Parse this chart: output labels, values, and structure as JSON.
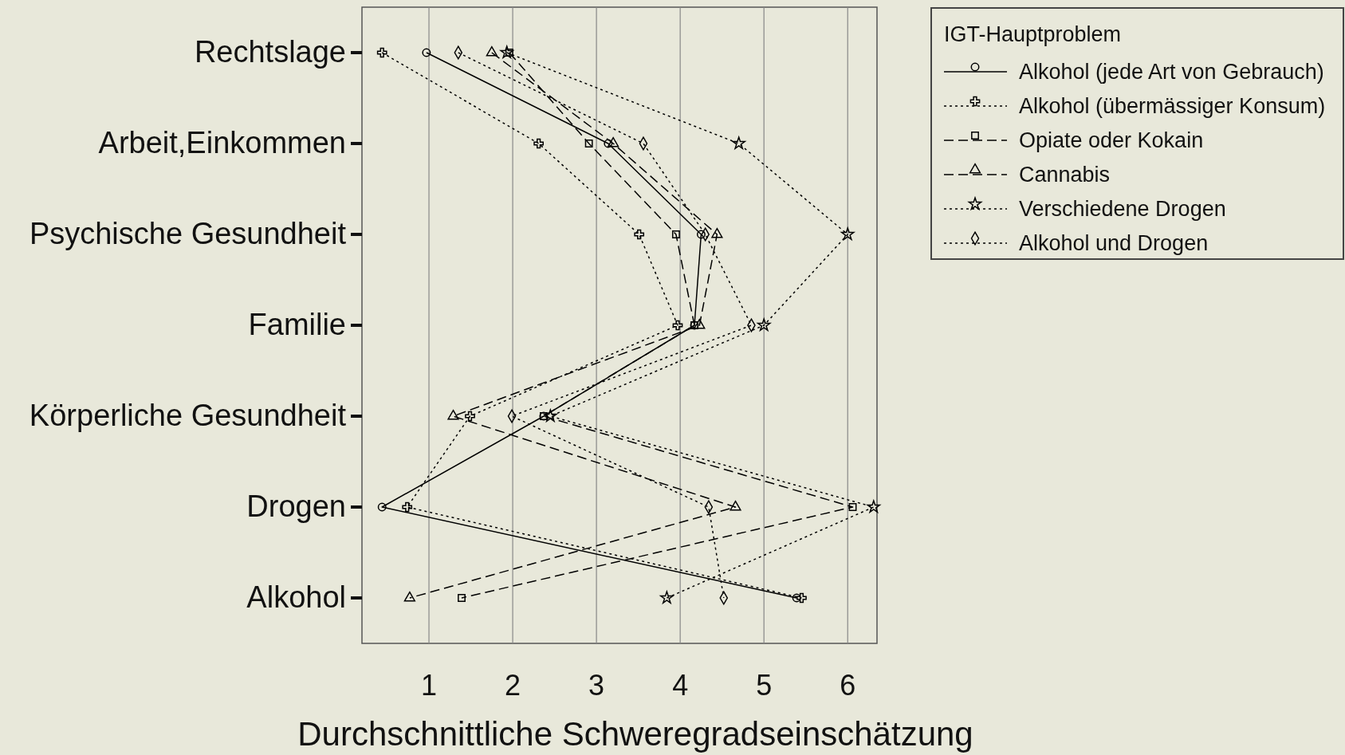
{
  "chart_data": {
    "type": "line",
    "orientation": "horizontal",
    "xlabel": "Durchschnittliche Schweregradseinschätzung",
    "legend_title": "IGT-Hauptproblem",
    "categories": [
      "Rechtslage",
      "Arbeit,Einkommen",
      "Psychische Gesundheit",
      "Familie",
      "Körperliche Gesundheit",
      "Drogen",
      "Alkohol"
    ],
    "series": [
      {
        "name": "Alkohol (jede Art von Gebrauch)",
        "color": "#000000",
        "line_style": "solid",
        "marker": "circle",
        "values": [
          0.97,
          3.14,
          4.25,
          4.17,
          2.37,
          0.44,
          5.39
        ]
      },
      {
        "name": "Alkohol (übermässiger Konsum)",
        "color": "#000000",
        "line_style": "dotted",
        "marker": "cross",
        "values": [
          0.44,
          2.31,
          3.51,
          3.97,
          1.49,
          0.74,
          5.45
        ]
      },
      {
        "name": "Opiate oder Kokain",
        "color": "#000000",
        "line_style": "dashed",
        "marker": "square",
        "values": [
          1.96,
          2.91,
          3.95,
          4.17,
          2.37,
          6.06,
          1.39
        ]
      },
      {
        "name": "Cannabis",
        "color": "#000000",
        "line_style": "dashed",
        "marker": "triangle",
        "values": [
          1.75,
          3.2,
          4.44,
          4.23,
          1.29,
          4.66,
          0.77
        ]
      },
      {
        "name": "Verschiedene Drogen",
        "color": "#000000",
        "line_style": "dotted",
        "marker": "star",
        "values": [
          1.93,
          4.7,
          6.0,
          5.0,
          2.45,
          6.31,
          3.84
        ]
      },
      {
        "name": "Alkohol und Drogen",
        "color": "#000000",
        "line_style": "dotted",
        "marker": "diamond",
        "values": [
          1.35,
          3.56,
          4.3,
          4.85,
          1.99,
          4.34,
          4.52
        ]
      }
    ],
    "xlim": [
      0.2,
      6.35
    ],
    "xticks": [
      1,
      2,
      3,
      4,
      5,
      6
    ],
    "grid": "x",
    "legend": "top right"
  }
}
